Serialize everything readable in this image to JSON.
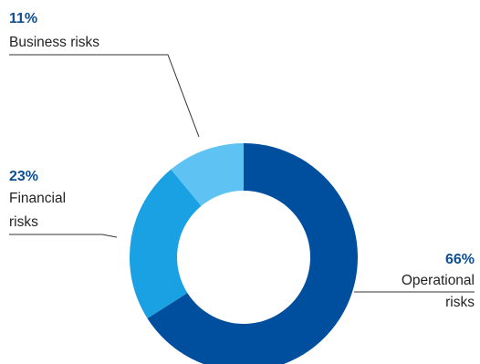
{
  "chart_data": {
    "type": "donut",
    "title": "",
    "slices": [
      {
        "label_lines": [
          "Operational",
          "risks"
        ],
        "value": 66,
        "value_label": "66%",
        "color": "#004f9f"
      },
      {
        "label_lines": [
          "Financial",
          "risks"
        ],
        "value": 23,
        "value_label": "23%",
        "color": "#1aa1e4"
      },
      {
        "label_lines": [
          "Business risks"
        ],
        "value": 11,
        "value_label": "11%",
        "color": "#5ec2f2"
      }
    ],
    "start": "12 o'clock",
    "direction": "clockwise",
    "percent_color": "#0d4f94",
    "leader_color": "#333333"
  }
}
